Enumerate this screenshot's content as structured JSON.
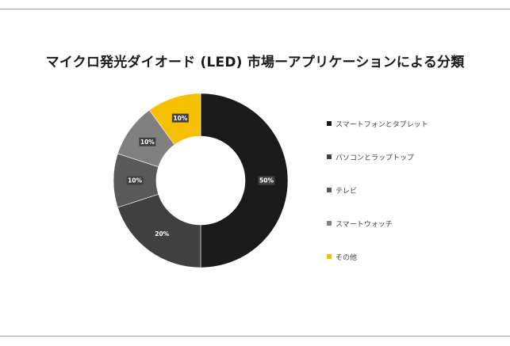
{
  "chart_data": {
    "type": "pie",
    "variant": "donut",
    "title": "マイクロ発光ダイオード (LED) 市場ーアプリケーションによる分類",
    "categories": [
      "スマートフォンとタブレット",
      "パソコンとラップトップ",
      "テレビ",
      "スマートウォッチ",
      "その他"
    ],
    "values": [
      50,
      20,
      10,
      10,
      10
    ],
    "value_labels": [
      "50%",
      "20%",
      "10%",
      "10%",
      "10%"
    ],
    "colors": [
      "#1a1a1a",
      "#404040",
      "#595959",
      "#808080",
      "#f5c000"
    ],
    "legend_position": "right"
  }
}
